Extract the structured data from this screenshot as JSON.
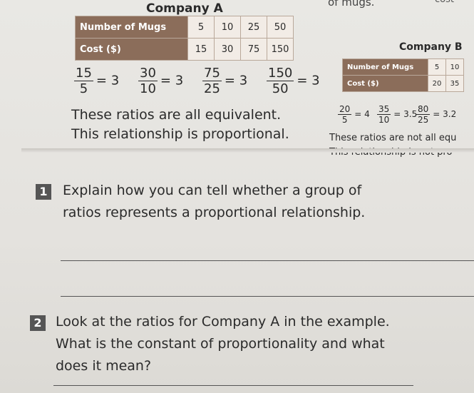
{
  "header": {
    "fragment_left": "of mugs.",
    "fragment_right": "cost"
  },
  "company_a": {
    "title": "Company A",
    "rows": [
      [
        "Number of Mugs",
        5,
        10,
        25,
        50
      ],
      [
        "Cost ($)",
        15,
        30,
        75,
        150
      ]
    ],
    "ratios": [
      {
        "numerator": 15,
        "denominator": 5,
        "result": 3
      },
      {
        "numerator": 30,
        "denominator": 10,
        "result": 3
      },
      {
        "numerator": 75,
        "denominator": 25,
        "result": 3
      },
      {
        "numerator": 150,
        "denominator": 50,
        "result": 3
      }
    ],
    "statement_1": "These ratios are all equivalent.",
    "statement_2": "This relationship is proportional."
  },
  "company_b": {
    "title": "Company B",
    "rows": [
      [
        "Number of Mugs",
        5,
        10
      ],
      [
        "Cost ($)",
        20,
        35
      ]
    ],
    "ratios": [
      {
        "numerator": 20,
        "denominator": 5,
        "result": 4
      },
      {
        "numerator": 35,
        "denominator": 10,
        "result": 3.5
      },
      {
        "numerator": 80,
        "denominator": 25,
        "result": 3.2
      }
    ],
    "statement_1": "These ratios are not all equ",
    "statement_2": "This relationship is not pro"
  },
  "questions": [
    {
      "number": "1",
      "text": "Explain how you can tell whether a group of ratios represents a proportional relationship."
    },
    {
      "number": "2",
      "text": "Look at the ratios for Company A in the example. What is the constant of proportionality and what does it mean?"
    }
  ]
}
